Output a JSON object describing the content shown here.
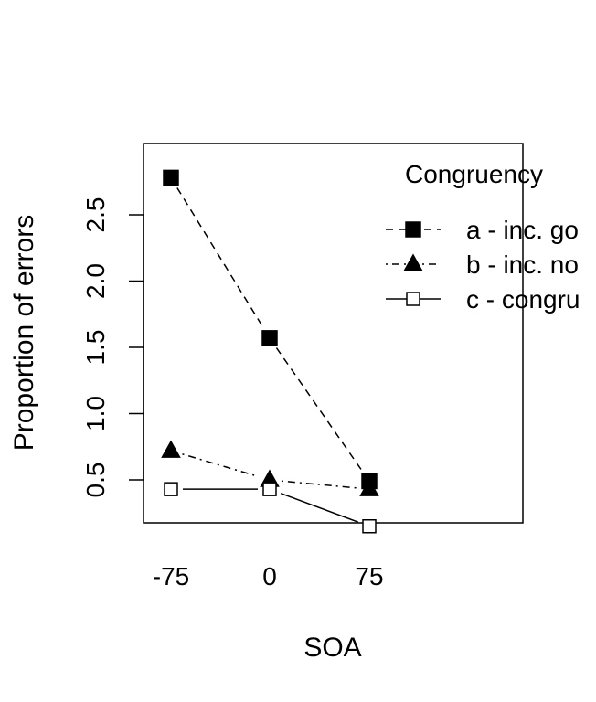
{
  "chart_data": {
    "type": "line",
    "title": "",
    "xlabel": "SOA",
    "ylabel": "Proportion of errors",
    "categories": [
      "-75",
      "0",
      "75"
    ],
    "ylim": [
      0.05,
      2.9
    ],
    "yticks": [
      0.5,
      1.0,
      1.5,
      2.0,
      2.5
    ],
    "ytick_labels": [
      "0.5",
      "1.0",
      "1.5",
      "2.0",
      "2.5"
    ],
    "grid": false,
    "legend": {
      "title": "Congruency",
      "position": "top-right"
    },
    "series": [
      {
        "name": "a - inc. go",
        "values": [
          2.78,
          1.57,
          0.49
        ],
        "marker": "filled-square",
        "linestyle": "dashed",
        "color": "#000000"
      },
      {
        "name": "b - inc. no",
        "values": [
          0.72,
          0.5,
          0.43
        ],
        "marker": "filled-triangle",
        "linestyle": "dotdash",
        "color": "#000000"
      },
      {
        "name": "c - congru",
        "values": [
          0.43,
          0.43,
          0.15
        ],
        "marker": "open-square",
        "linestyle": "solid",
        "color": "#000000"
      }
    ]
  }
}
